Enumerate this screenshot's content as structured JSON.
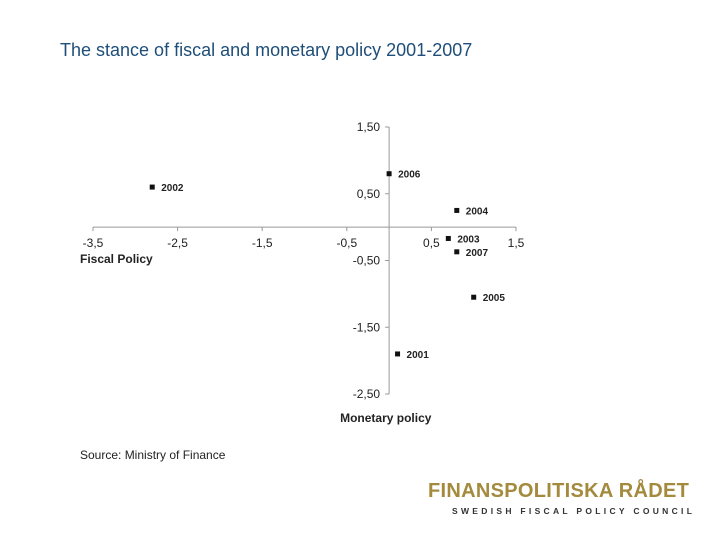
{
  "slide": {
    "title": "The stance of fiscal and monetary policy 2001-2007",
    "source": "Source: Ministry of Finance"
  },
  "logo": {
    "name": "FINANSPOLITISKA RÅDET",
    "subtitle": "SWEDISH FISCAL POLICY COUNCIL"
  },
  "colors": {
    "title": "#1f4e79",
    "logo_gold": "#a38a3d",
    "axis": "#999999",
    "marker": "#111111"
  },
  "chart_data": {
    "type": "scatter",
    "title": "",
    "xlabel": "Fiscal Policy",
    "ylabel": "Monetary policy",
    "xlim": [
      -3.5,
      1.5
    ],
    "ylim": [
      -2.5,
      1.5
    ],
    "grid": false,
    "x_ticks": [
      -3.5,
      -2.5,
      -1.5,
      -0.5,
      0.5,
      1.5
    ],
    "x_tick_labels": [
      "-3,5",
      "-2,5",
      "-1,5",
      "-0,5",
      "0,5",
      "1,5"
    ],
    "y_ticks": [
      1.5,
      0.5,
      -0.5,
      -1.5,
      -2.5
    ],
    "y_tick_labels": [
      "1,50",
      "0,50",
      "-0,50",
      "-1,50",
      "-2,50"
    ],
    "points": [
      {
        "label": "2001",
        "x": 0.1,
        "y": -1.9
      },
      {
        "label": "2002",
        "x": -2.8,
        "y": 0.6
      },
      {
        "label": "2003",
        "x": 0.7,
        "y": -0.17
      },
      {
        "label": "2004",
        "x": 0.8,
        "y": 0.25
      },
      {
        "label": "2005",
        "x": 1.0,
        "y": -1.05
      },
      {
        "label": "2006",
        "x": 0.0,
        "y": 0.8
      },
      {
        "label": "2007",
        "x": 0.8,
        "y": -0.37
      }
    ]
  }
}
